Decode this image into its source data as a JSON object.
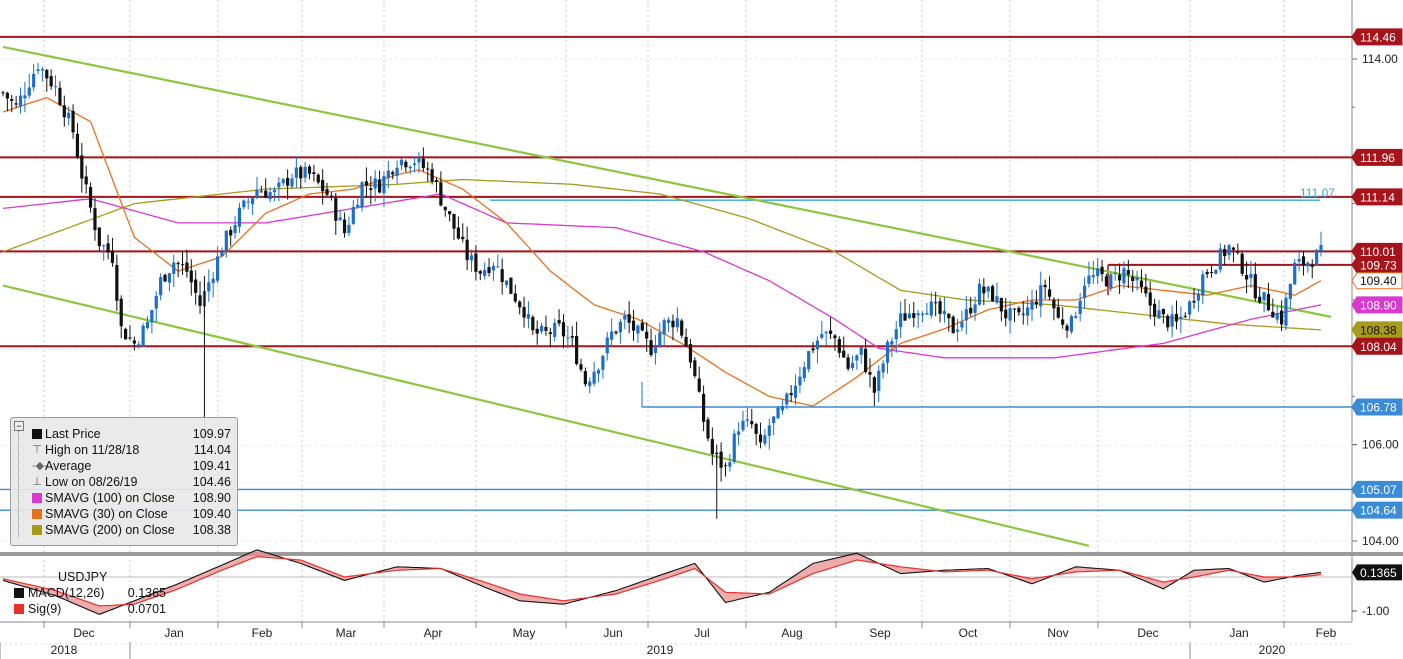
{
  "chart_data": {
    "type": "candlestick",
    "title": "USDJPY",
    "y_axis": {
      "range": [
        103.7,
        115.0
      ],
      "ticks": [
        "114.00",
        "106.00",
        "104.00"
      ],
      "side": "right"
    },
    "x_axis": {
      "months": [
        "Dec",
        "Jan",
        "Feb",
        "Mar",
        "Apr",
        "May",
        "Jun",
        "Jul",
        "Aug",
        "Sep",
        "Oct",
        "Nov",
        "Dec",
        "Jan",
        "Feb"
      ],
      "years": [
        "2018",
        "2019",
        "2020"
      ]
    },
    "series_keypoints": {
      "close": [
        [
          0,
          113.3
        ],
        [
          3,
          113.0
        ],
        [
          8,
          113.9
        ],
        [
          12,
          113.4
        ],
        [
          16,
          112.5
        ],
        [
          18,
          111.6
        ],
        [
          22,
          110.2
        ],
        [
          25,
          109.9
        ],
        [
          27,
          108.4
        ],
        [
          30,
          108.1
        ],
        [
          33,
          108.5
        ],
        [
          36,
          109.4
        ],
        [
          39,
          109.8
        ],
        [
          42,
          109.6
        ],
        [
          45,
          108.9
        ],
        [
          48,
          109.6
        ],
        [
          50,
          110.1
        ],
        [
          54,
          110.8
        ],
        [
          58,
          111.3
        ],
        [
          62,
          111.2
        ],
        [
          66,
          111.6
        ],
        [
          70,
          111.6
        ],
        [
          74,
          111.2
        ],
        [
          78,
          110.4
        ],
        [
          82,
          111.4
        ],
        [
          86,
          111.4
        ],
        [
          90,
          111.9
        ],
        [
          94,
          111.9
        ],
        [
          98,
          111.6
        ],
        [
          100,
          111.1
        ],
        [
          103,
          110.5
        ],
        [
          106,
          109.9
        ],
        [
          109,
          109.6
        ],
        [
          112,
          109.8
        ],
        [
          116,
          109.2
        ],
        [
          119,
          108.8
        ],
        [
          121,
          108.3
        ],
        [
          124,
          108.3
        ],
        [
          127,
          108.4
        ],
        [
          130,
          108.1
        ],
        [
          133,
          107.3
        ],
        [
          136,
          107.7
        ],
        [
          139,
          108.3
        ],
        [
          142,
          108.6
        ],
        [
          145,
          108.3
        ],
        [
          148,
          108.0
        ],
        [
          151,
          108.5
        ],
        [
          154,
          108.6
        ],
        [
          157,
          107.8
        ],
        [
          160,
          106.5
        ],
        [
          162,
          105.8
        ],
        [
          165,
          105.5
        ],
        [
          168,
          106.4
        ],
        [
          171,
          106.4
        ],
        [
          173,
          105.9
        ],
        [
          175,
          106.4
        ],
        [
          178,
          106.7
        ],
        [
          181,
          107.3
        ],
        [
          184,
          107.9
        ],
        [
          187,
          108.3
        ],
        [
          190,
          108.2
        ],
        [
          193,
          107.6
        ],
        [
          196,
          107.9
        ],
        [
          199,
          107.1
        ],
        [
          202,
          108.0
        ],
        [
          205,
          108.6
        ],
        [
          208,
          108.8
        ],
        [
          211,
          108.9
        ],
        [
          214,
          108.7
        ],
        [
          217,
          108.4
        ],
        [
          220,
          108.7
        ],
        [
          223,
          109.2
        ],
        [
          226,
          109.1
        ],
        [
          229,
          108.7
        ],
        [
          232,
          108.6
        ],
        [
          235,
          108.9
        ],
        [
          238,
          109.3
        ],
        [
          241,
          108.6
        ],
        [
          244,
          108.5
        ],
        [
          247,
          109.4
        ],
        [
          250,
          109.5
        ],
        [
          253,
          109.4
        ],
        [
          256,
          109.6
        ],
        [
          259,
          109.3
        ],
        [
          262,
          108.9
        ],
        [
          265,
          108.6
        ],
        [
          268,
          108.5
        ],
        [
          271,
          108.9
        ],
        [
          274,
          109.5
        ],
        [
          277,
          109.8
        ],
        [
          280,
          110.1
        ],
        [
          283,
          109.7
        ],
        [
          286,
          109.2
        ],
        [
          289,
          108.9
        ],
        [
          292,
          108.6
        ],
        [
          295,
          109.7
        ],
        [
          298,
          109.8
        ],
        [
          301,
          109.97
        ]
      ],
      "ma_30": [
        [
          0,
          112.9
        ],
        [
          10,
          113.2
        ],
        [
          20,
          112.7
        ],
        [
          30,
          110.3
        ],
        [
          40,
          109.6
        ],
        [
          50,
          109.9
        ],
        [
          60,
          110.8
        ],
        [
          70,
          111.2
        ],
        [
          80,
          111.3
        ],
        [
          90,
          111.6
        ],
        [
          95,
          111.7
        ],
        [
          105,
          111.3
        ],
        [
          115,
          110.6
        ],
        [
          125,
          109.6
        ],
        [
          135,
          108.9
        ],
        [
          145,
          108.6
        ],
        [
          155,
          108.1
        ],
        [
          165,
          107.5
        ],
        [
          175,
          107.0
        ],
        [
          185,
          106.8
        ],
        [
          195,
          107.4
        ],
        [
          205,
          108.1
        ],
        [
          215,
          108.4
        ],
        [
          225,
          108.8
        ],
        [
          235,
          109.0
        ],
        [
          245,
          109.0
        ],
        [
          255,
          109.3
        ],
        [
          265,
          109.2
        ],
        [
          275,
          109.1
        ],
        [
          285,
          109.3
        ],
        [
          295,
          109.1
        ],
        [
          301,
          109.4
        ]
      ],
      "ma_100": [
        [
          0,
          110.9
        ],
        [
          20,
          111.1
        ],
        [
          40,
          110.6
        ],
        [
          60,
          110.6
        ],
        [
          80,
          110.9
        ],
        [
          100,
          111.2
        ],
        [
          115,
          110.6
        ],
        [
          140,
          110.5
        ],
        [
          160,
          110.0
        ],
        [
          175,
          109.4
        ],
        [
          190,
          108.6
        ],
        [
          200,
          108.0
        ],
        [
          215,
          107.8
        ],
        [
          240,
          107.8
        ],
        [
          265,
          108.1
        ],
        [
          285,
          108.6
        ],
        [
          301,
          108.9
        ]
      ],
      "ma_200": [
        [
          0,
          110.0
        ],
        [
          30,
          111.0
        ],
        [
          60,
          111.3
        ],
        [
          90,
          111.4
        ],
        [
          105,
          111.5
        ],
        [
          130,
          111.4
        ],
        [
          150,
          111.2
        ],
        [
          170,
          110.7
        ],
        [
          190,
          110.0
        ],
        [
          205,
          109.2
        ],
        [
          220,
          109.0
        ],
        [
          240,
          108.9
        ],
        [
          260,
          108.7
        ],
        [
          280,
          108.5
        ],
        [
          301,
          108.38
        ]
      ]
    },
    "horizontal_levels": [
      {
        "label": "114.46",
        "value": 114.46,
        "color": "#a5131b"
      },
      {
        "label": "111.96",
        "value": 111.96,
        "color": "#a5131b"
      },
      {
        "label": "111.14",
        "value": 111.14,
        "color": "#a5131b"
      },
      {
        "label": "111.07",
        "value": 111.07,
        "color": "#3aa8d8"
      },
      {
        "label": "110.01",
        "value": 110.01,
        "color": "#a5131b"
      },
      {
        "label": "109.73",
        "value": 109.73,
        "color": "#a5131b"
      },
      {
        "label": "108.04",
        "value": 108.04,
        "color": "#a5131b"
      },
      {
        "label": "106.78",
        "value": 106.78,
        "color": "#3a8cd8"
      },
      {
        "label": "105.07",
        "value": 105.07,
        "color": "#3a8cd8"
      },
      {
        "label": "104.64",
        "value": 104.64,
        "color": "#3a8cd8"
      }
    ],
    "trendlines": [
      {
        "color": "#8cc63f",
        "from": [
          0,
          114.25
        ],
        "to": [
          301,
          108.65
        ]
      },
      {
        "color": "#8cc63f",
        "from": [
          0,
          109.3
        ],
        "to": [
          248,
          103.9
        ]
      }
    ],
    "price_tags": [
      {
        "text": "114.46",
        "value": 114.46,
        "bg": "#a5131b",
        "fg": "#ffffff"
      },
      {
        "text": "111.96",
        "value": 111.96,
        "bg": "#a5131b",
        "fg": "#ffffff"
      },
      {
        "text": "111.14",
        "value": 111.14,
        "bg": "#a5131b",
        "fg": "#ffffff"
      },
      {
        "text": "110.01",
        "value": 110.01,
        "bg": "#a5131b",
        "fg": "#ffffff"
      },
      {
        "text": "109.73",
        "value": 109.73,
        "bg": "#a5131b",
        "fg": "#ffffff"
      },
      {
        "text": "109.40",
        "value": 109.4,
        "bg": "#ffffff",
        "fg": "#111111",
        "border": "#e8701f"
      },
      {
        "text": "108.90",
        "value": 108.9,
        "bg": "#d83ad0",
        "fg": "#ffffff"
      },
      {
        "text": "108.38",
        "value": 108.38,
        "bg": "#a89a1a",
        "fg": "#111111"
      },
      {
        "text": "108.04",
        "value": 108.04,
        "bg": "#a5131b",
        "fg": "#ffffff"
      },
      {
        "text": "106.78",
        "value": 106.78,
        "bg": "#3a8cd8",
        "fg": "#ffffff"
      },
      {
        "text": "105.07",
        "value": 105.07,
        "bg": "#3a8cd8",
        "fg": "#ffffff"
      },
      {
        "text": "104.64",
        "value": 104.64,
        "bg": "#3a8cd8",
        "fg": "#ffffff"
      }
    ],
    "macd": {
      "title": "USDJPY",
      "ticks": [
        "-1.00"
      ],
      "last_tag": "0.1365",
      "macd_keypoints": [
        [
          0,
          -0.1
        ],
        [
          12,
          -0.55
        ],
        [
          22,
          -1.1
        ],
        [
          30,
          -0.7
        ],
        [
          40,
          -0.2
        ],
        [
          50,
          0.35
        ],
        [
          58,
          0.8
        ],
        [
          68,
          0.4
        ],
        [
          78,
          -0.1
        ],
        [
          90,
          0.3
        ],
        [
          100,
          0.25
        ],
        [
          110,
          -0.3
        ],
        [
          118,
          -0.7
        ],
        [
          128,
          -0.8
        ],
        [
          140,
          -0.4
        ],
        [
          150,
          0.05
        ],
        [
          158,
          0.4
        ],
        [
          165,
          -0.75
        ],
        [
          175,
          -0.45
        ],
        [
          185,
          0.4
        ],
        [
          195,
          0.7
        ],
        [
          205,
          0.1
        ],
        [
          215,
          0.2
        ],
        [
          225,
          0.25
        ],
        [
          235,
          -0.2
        ],
        [
          245,
          0.3
        ],
        [
          255,
          0.2
        ],
        [
          265,
          -0.35
        ],
        [
          272,
          0.2
        ],
        [
          280,
          0.25
        ],
        [
          288,
          -0.15
        ],
        [
          296,
          0.05
        ],
        [
          301,
          0.1365
        ]
      ],
      "signal_keypoints": [
        [
          0,
          -0.05
        ],
        [
          12,
          -0.4
        ],
        [
          22,
          -0.85
        ],
        [
          30,
          -0.8
        ],
        [
          40,
          -0.35
        ],
        [
          50,
          0.2
        ],
        [
          58,
          0.6
        ],
        [
          68,
          0.5
        ],
        [
          78,
          0.0
        ],
        [
          90,
          0.2
        ],
        [
          100,
          0.25
        ],
        [
          110,
          -0.15
        ],
        [
          118,
          -0.5
        ],
        [
          128,
          -0.7
        ],
        [
          140,
          -0.5
        ],
        [
          150,
          -0.1
        ],
        [
          158,
          0.25
        ],
        [
          165,
          -0.45
        ],
        [
          175,
          -0.5
        ],
        [
          185,
          0.1
        ],
        [
          195,
          0.5
        ],
        [
          205,
          0.3
        ],
        [
          215,
          0.15
        ],
        [
          225,
          0.2
        ],
        [
          235,
          -0.05
        ],
        [
          245,
          0.15
        ],
        [
          255,
          0.2
        ],
        [
          265,
          -0.15
        ],
        [
          272,
          0.0
        ],
        [
          280,
          0.2
        ],
        [
          288,
          0.0
        ],
        [
          296,
          0.0
        ],
        [
          301,
          0.0701
        ]
      ]
    }
  },
  "legend": {
    "items": [
      {
        "label": "Last Price",
        "value": "109.97",
        "swatch": "#111111",
        "glyph": ""
      },
      {
        "label": "High on 11/28/18",
        "value": "114.04",
        "swatch": "",
        "glyph": "T"
      },
      {
        "label": "Average",
        "value": "109.41",
        "swatch": "",
        "glyph": "-+-"
      },
      {
        "label": "Low on 08/26/19",
        "value": "104.46",
        "swatch": "",
        "glyph": "⊥"
      },
      {
        "label": "SMAVG (100)  on Close",
        "value": "108.90",
        "swatch": "#d83ad0",
        "glyph": ""
      },
      {
        "label": "SMAVG (30)  on Close",
        "value": "109.40",
        "swatch": "#e8701f",
        "glyph": ""
      },
      {
        "label": "SMAVG (200)  on Close",
        "value": "108.38",
        "swatch": "#a89a1a",
        "glyph": ""
      }
    ]
  },
  "macd_legend": {
    "title": "USDJPY",
    "items": [
      {
        "label": "MACD(12,26)",
        "value": "0.1365",
        "swatch": "#111111"
      },
      {
        "label": "Sig(9)",
        "value": "0.0701",
        "swatch": "#e8302a"
      }
    ]
  },
  "colors": {
    "candle_up": "#1d6fc7",
    "candle_down": "#111111",
    "ma30": "#e8701f",
    "ma100": "#d83ad0",
    "ma200": "#a89a1a",
    "trend": "#8cc63f",
    "grid": "#c8c8c8"
  }
}
